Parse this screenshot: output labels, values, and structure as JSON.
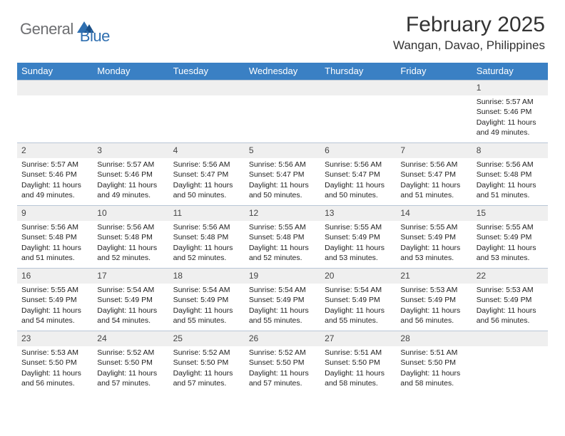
{
  "logo": {
    "part1": "General",
    "part2": "Blue"
  },
  "title": "February 2025",
  "location": "Wangan, Davao, Philippines",
  "colors": {
    "header_bg": "#3a80c4",
    "header_text": "#ffffff",
    "daynum_bg": "#efefef",
    "daynum_border": "#b8c6d6",
    "body_text": "#222222",
    "logo_gray": "#6d6e71",
    "logo_blue": "#2f6fb0",
    "title_color": "#333333",
    "background": "#ffffff"
  },
  "day_headers": [
    "Sunday",
    "Monday",
    "Tuesday",
    "Wednesday",
    "Thursday",
    "Friday",
    "Saturday"
  ],
  "weeks": [
    [
      {
        "n": "",
        "sunrise": "",
        "sunset": "",
        "daylight": ""
      },
      {
        "n": "",
        "sunrise": "",
        "sunset": "",
        "daylight": ""
      },
      {
        "n": "",
        "sunrise": "",
        "sunset": "",
        "daylight": ""
      },
      {
        "n": "",
        "sunrise": "",
        "sunset": "",
        "daylight": ""
      },
      {
        "n": "",
        "sunrise": "",
        "sunset": "",
        "daylight": ""
      },
      {
        "n": "",
        "sunrise": "",
        "sunset": "",
        "daylight": ""
      },
      {
        "n": "1",
        "sunrise": "Sunrise: 5:57 AM",
        "sunset": "Sunset: 5:46 PM",
        "daylight": "Daylight: 11 hours and 49 minutes."
      }
    ],
    [
      {
        "n": "2",
        "sunrise": "Sunrise: 5:57 AM",
        "sunset": "Sunset: 5:46 PM",
        "daylight": "Daylight: 11 hours and 49 minutes."
      },
      {
        "n": "3",
        "sunrise": "Sunrise: 5:57 AM",
        "sunset": "Sunset: 5:46 PM",
        "daylight": "Daylight: 11 hours and 49 minutes."
      },
      {
        "n": "4",
        "sunrise": "Sunrise: 5:56 AM",
        "sunset": "Sunset: 5:47 PM",
        "daylight": "Daylight: 11 hours and 50 minutes."
      },
      {
        "n": "5",
        "sunrise": "Sunrise: 5:56 AM",
        "sunset": "Sunset: 5:47 PM",
        "daylight": "Daylight: 11 hours and 50 minutes."
      },
      {
        "n": "6",
        "sunrise": "Sunrise: 5:56 AM",
        "sunset": "Sunset: 5:47 PM",
        "daylight": "Daylight: 11 hours and 50 minutes."
      },
      {
        "n": "7",
        "sunrise": "Sunrise: 5:56 AM",
        "sunset": "Sunset: 5:47 PM",
        "daylight": "Daylight: 11 hours and 51 minutes."
      },
      {
        "n": "8",
        "sunrise": "Sunrise: 5:56 AM",
        "sunset": "Sunset: 5:48 PM",
        "daylight": "Daylight: 11 hours and 51 minutes."
      }
    ],
    [
      {
        "n": "9",
        "sunrise": "Sunrise: 5:56 AM",
        "sunset": "Sunset: 5:48 PM",
        "daylight": "Daylight: 11 hours and 51 minutes."
      },
      {
        "n": "10",
        "sunrise": "Sunrise: 5:56 AM",
        "sunset": "Sunset: 5:48 PM",
        "daylight": "Daylight: 11 hours and 52 minutes."
      },
      {
        "n": "11",
        "sunrise": "Sunrise: 5:56 AM",
        "sunset": "Sunset: 5:48 PM",
        "daylight": "Daylight: 11 hours and 52 minutes."
      },
      {
        "n": "12",
        "sunrise": "Sunrise: 5:55 AM",
        "sunset": "Sunset: 5:48 PM",
        "daylight": "Daylight: 11 hours and 52 minutes."
      },
      {
        "n": "13",
        "sunrise": "Sunrise: 5:55 AM",
        "sunset": "Sunset: 5:49 PM",
        "daylight": "Daylight: 11 hours and 53 minutes."
      },
      {
        "n": "14",
        "sunrise": "Sunrise: 5:55 AM",
        "sunset": "Sunset: 5:49 PM",
        "daylight": "Daylight: 11 hours and 53 minutes."
      },
      {
        "n": "15",
        "sunrise": "Sunrise: 5:55 AM",
        "sunset": "Sunset: 5:49 PM",
        "daylight": "Daylight: 11 hours and 53 minutes."
      }
    ],
    [
      {
        "n": "16",
        "sunrise": "Sunrise: 5:55 AM",
        "sunset": "Sunset: 5:49 PM",
        "daylight": "Daylight: 11 hours and 54 minutes."
      },
      {
        "n": "17",
        "sunrise": "Sunrise: 5:54 AM",
        "sunset": "Sunset: 5:49 PM",
        "daylight": "Daylight: 11 hours and 54 minutes."
      },
      {
        "n": "18",
        "sunrise": "Sunrise: 5:54 AM",
        "sunset": "Sunset: 5:49 PM",
        "daylight": "Daylight: 11 hours and 55 minutes."
      },
      {
        "n": "19",
        "sunrise": "Sunrise: 5:54 AM",
        "sunset": "Sunset: 5:49 PM",
        "daylight": "Daylight: 11 hours and 55 minutes."
      },
      {
        "n": "20",
        "sunrise": "Sunrise: 5:54 AM",
        "sunset": "Sunset: 5:49 PM",
        "daylight": "Daylight: 11 hours and 55 minutes."
      },
      {
        "n": "21",
        "sunrise": "Sunrise: 5:53 AM",
        "sunset": "Sunset: 5:49 PM",
        "daylight": "Daylight: 11 hours and 56 minutes."
      },
      {
        "n": "22",
        "sunrise": "Sunrise: 5:53 AM",
        "sunset": "Sunset: 5:49 PM",
        "daylight": "Daylight: 11 hours and 56 minutes."
      }
    ],
    [
      {
        "n": "23",
        "sunrise": "Sunrise: 5:53 AM",
        "sunset": "Sunset: 5:50 PM",
        "daylight": "Daylight: 11 hours and 56 minutes."
      },
      {
        "n": "24",
        "sunrise": "Sunrise: 5:52 AM",
        "sunset": "Sunset: 5:50 PM",
        "daylight": "Daylight: 11 hours and 57 minutes."
      },
      {
        "n": "25",
        "sunrise": "Sunrise: 5:52 AM",
        "sunset": "Sunset: 5:50 PM",
        "daylight": "Daylight: 11 hours and 57 minutes."
      },
      {
        "n": "26",
        "sunrise": "Sunrise: 5:52 AM",
        "sunset": "Sunset: 5:50 PM",
        "daylight": "Daylight: 11 hours and 57 minutes."
      },
      {
        "n": "27",
        "sunrise": "Sunrise: 5:51 AM",
        "sunset": "Sunset: 5:50 PM",
        "daylight": "Daylight: 11 hours and 58 minutes."
      },
      {
        "n": "28",
        "sunrise": "Sunrise: 5:51 AM",
        "sunset": "Sunset: 5:50 PM",
        "daylight": "Daylight: 11 hours and 58 minutes."
      },
      {
        "n": "",
        "sunrise": "",
        "sunset": "",
        "daylight": ""
      }
    ]
  ]
}
